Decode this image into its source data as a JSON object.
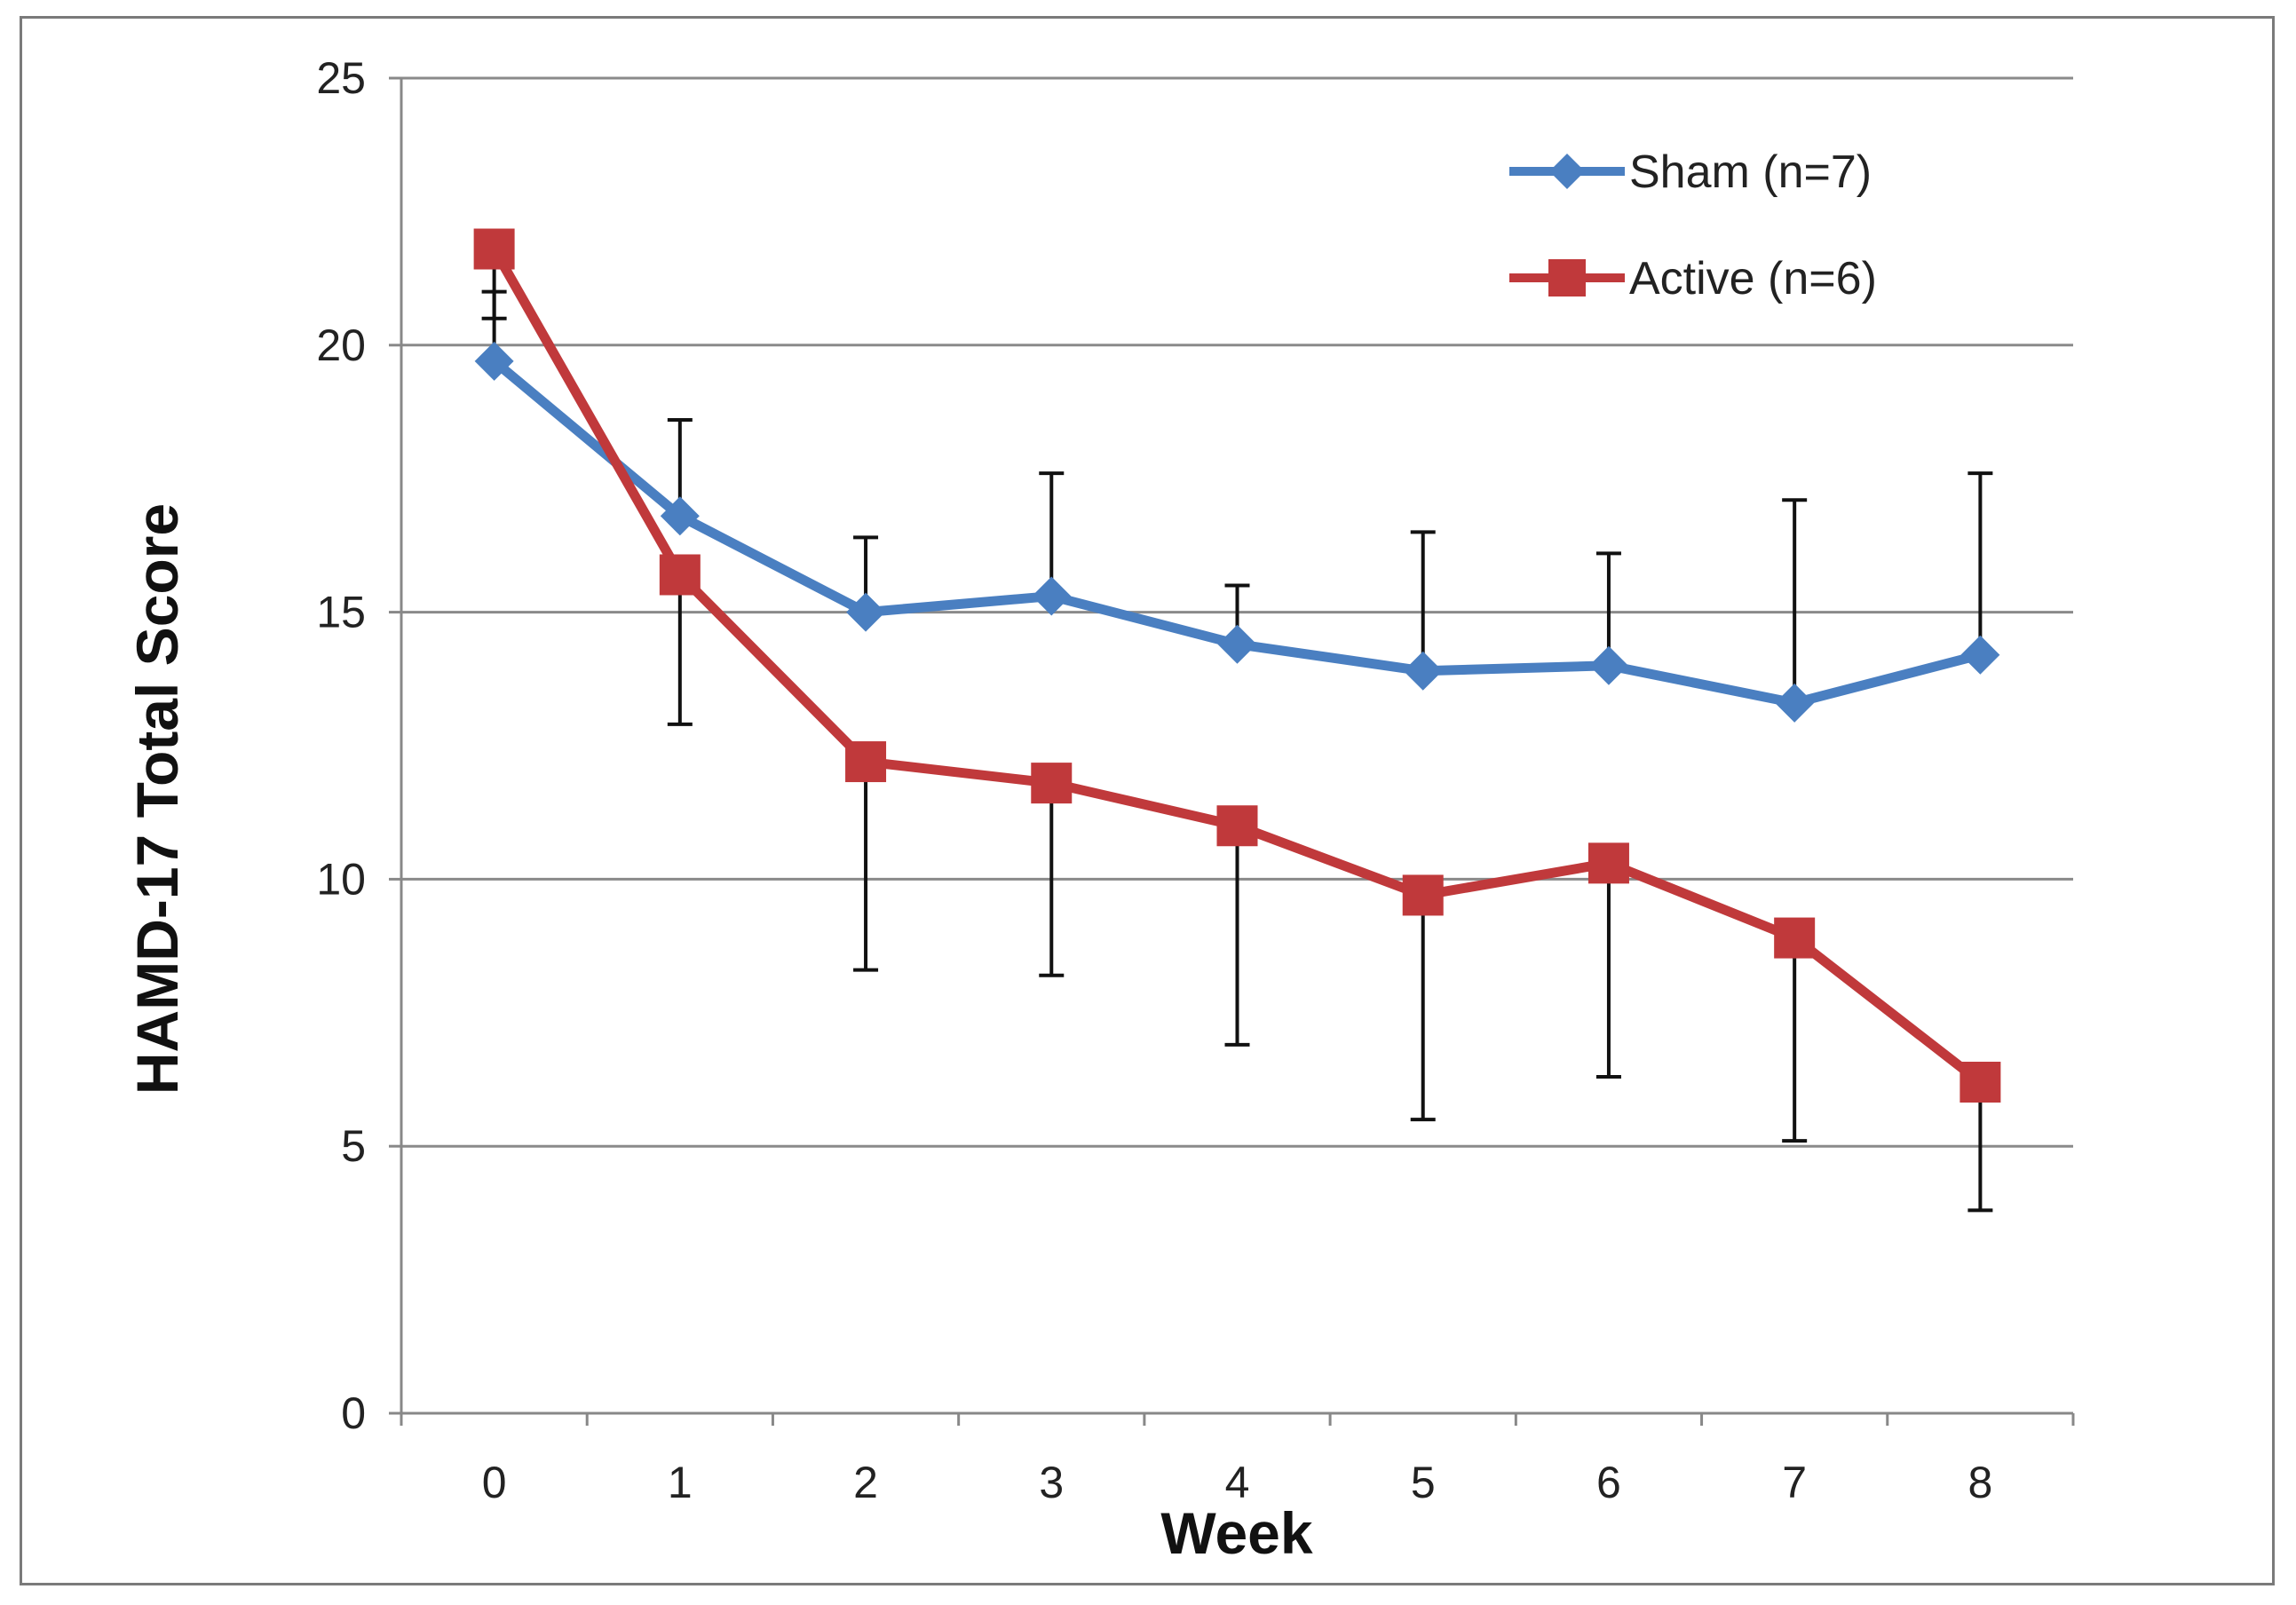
{
  "chart_data": {
    "type": "line",
    "title": "",
    "xlabel": "Week",
    "ylabel": "HAMD-17 Total Score",
    "categories": [
      "0",
      "1",
      "2",
      "3",
      "4",
      "5",
      "6",
      "7",
      "8"
    ],
    "yticks": [
      "0",
      "5",
      "10",
      "15",
      "20",
      "25"
    ],
    "ylim": [
      0,
      25
    ],
    "grid": true,
    "legend_position": "top-right",
    "series": [
      {
        "name": "Sham (n=7)",
        "color": "#4a7fc1",
        "marker": "diamond",
        "values": [
          19.7,
          16.8,
          15.0,
          15.3,
          14.4,
          13.9,
          14.0,
          13.3,
          14.2
        ],
        "error_upper": [
          21.0,
          18.6,
          16.4,
          17.6,
          15.5,
          16.5,
          16.1,
          17.1,
          17.6
        ],
        "error_lower": [
          null,
          null,
          null,
          null,
          null,
          null,
          null,
          null,
          null
        ]
      },
      {
        "name": "Active (n=6)",
        "color": "#c0393b",
        "marker": "square",
        "values": [
          21.8,
          15.7,
          12.2,
          11.8,
          11.0,
          9.7,
          10.3,
          8.9,
          6.2
        ],
        "error_upper": [
          null,
          null,
          null,
          null,
          null,
          null,
          null,
          null,
          null
        ],
        "error_lower": [
          20.5,
          12.9,
          8.3,
          8.2,
          6.9,
          5.5,
          6.3,
          5.1,
          3.8
        ]
      }
    ]
  }
}
